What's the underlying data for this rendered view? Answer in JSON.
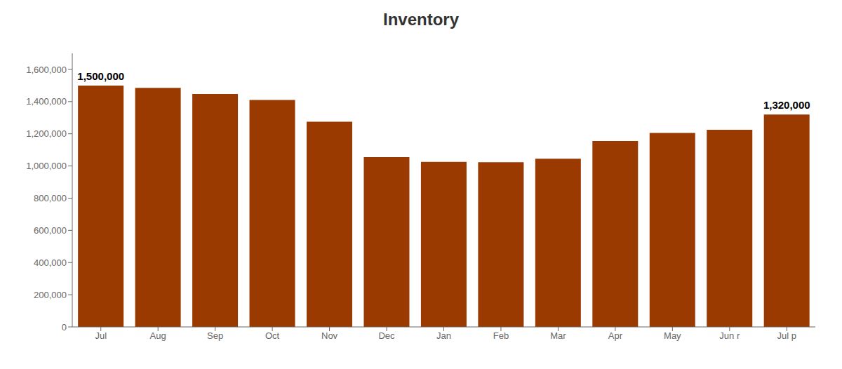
{
  "chart_data": {
    "type": "bar",
    "title": "Inventory",
    "categories": [
      "Jul",
      "Aug",
      "Sep",
      "Oct",
      "Nov",
      "Dec",
      "Jan",
      "Feb",
      "Mar",
      "Apr",
      "May",
      "Jun r",
      "Jul p"
    ],
    "values": [
      1500000,
      1485000,
      1447000,
      1410000,
      1275000,
      1055000,
      1025000,
      1023000,
      1045000,
      1155000,
      1205000,
      1225000,
      1320000
    ],
    "color": "#9B3A00",
    "ylim": [
      0,
      1700000
    ],
    "yticks": [
      0,
      {
        "value": 200000,
        "label": "200,000"
      },
      {
        "value": 400000,
        "label": "400,000"
      },
      {
        "value": 600000,
        "label": "600,000"
      },
      {
        "value": 800000,
        "label": "800,000"
      },
      {
        "value": 1000000,
        "label": "1,000,000"
      },
      {
        "value": 1200000,
        "label": "1,200,000"
      },
      {
        "value": 1400000,
        "label": "1,400,000"
      },
      {
        "value": 1600000,
        "label": "1,600,000"
      }
    ],
    "grid": false,
    "annotations": [
      {
        "text": "1,500,000",
        "category": "Jul",
        "value": 1500000
      },
      {
        "text": "1,320,000",
        "category": "Jul p",
        "value": 1320000
      }
    ]
  }
}
